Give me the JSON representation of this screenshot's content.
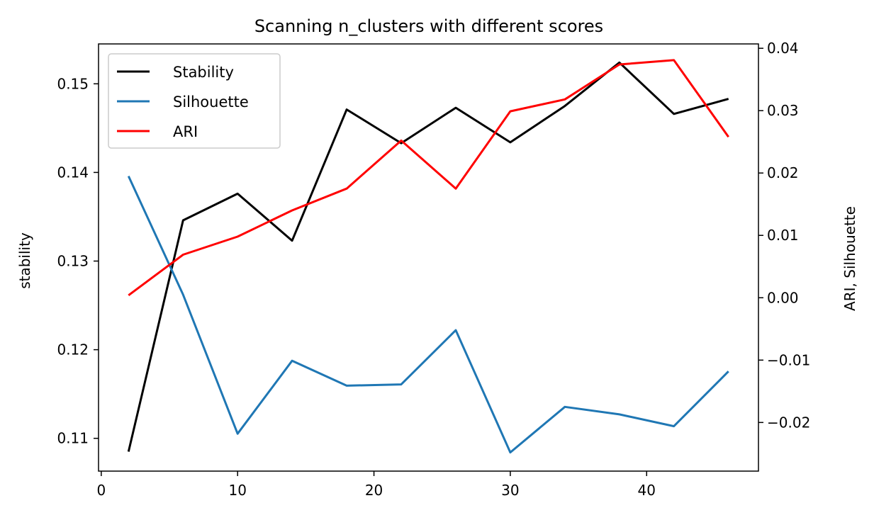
{
  "chart_data": {
    "type": "line",
    "title": "Scanning n_clusters with different scores",
    "xlabel": "",
    "ylabel_left": "stability",
    "ylabel_right": "ARI, Silhouette",
    "x": [
      2,
      6,
      10,
      14,
      18,
      22,
      26,
      30,
      34,
      38,
      42,
      46
    ],
    "xlim": [
      -0.2,
      48.2
    ],
    "ylim_left": [
      0.1063,
      0.1545
    ],
    "ylim_right": [
      -0.0278,
      0.0407
    ],
    "x_ticks": [
      0,
      10,
      20,
      30,
      40
    ],
    "y_ticks_left": [
      0.11,
      0.12,
      0.13,
      0.14,
      0.15
    ],
    "y_tick_labels_left": [
      "0.11",
      "0.12",
      "0.13",
      "0.14",
      "0.15"
    ],
    "y_ticks_right": [
      -0.02,
      -0.01,
      0.0,
      0.01,
      0.02,
      0.03,
      0.04
    ],
    "y_tick_labels_right": [
      "−0.02",
      "−0.01",
      "0.00",
      "0.01",
      "0.02",
      "0.03",
      "0.04"
    ],
    "grid": false,
    "legend_position": "upper-left",
    "series": [
      {
        "name": "Stability",
        "axis": "left",
        "color": "#000000",
        "values": [
          0.1085,
          0.1346,
          0.1376,
          0.1323,
          0.1471,
          0.1433,
          0.1473,
          0.1434,
          0.1475,
          0.1524,
          0.1466,
          0.1483
        ]
      },
      {
        "name": "Silhouette",
        "axis": "right",
        "color": "#1f77b4",
        "values": [
          0.0195,
          0.0005,
          -0.0218,
          -0.0101,
          -0.0141,
          -0.0139,
          -0.0052,
          -0.0248,
          -0.0175,
          -0.0187,
          -0.0206,
          -0.0118
        ]
      },
      {
        "name": "ARI",
        "axis": "right",
        "color": "#ff0000",
        "values": [
          0.0004,
          0.0069,
          0.0098,
          0.014,
          0.0175,
          0.0252,
          0.0175,
          0.0299,
          0.0318,
          0.0374,
          0.0381,
          0.0258
        ]
      }
    ]
  }
}
